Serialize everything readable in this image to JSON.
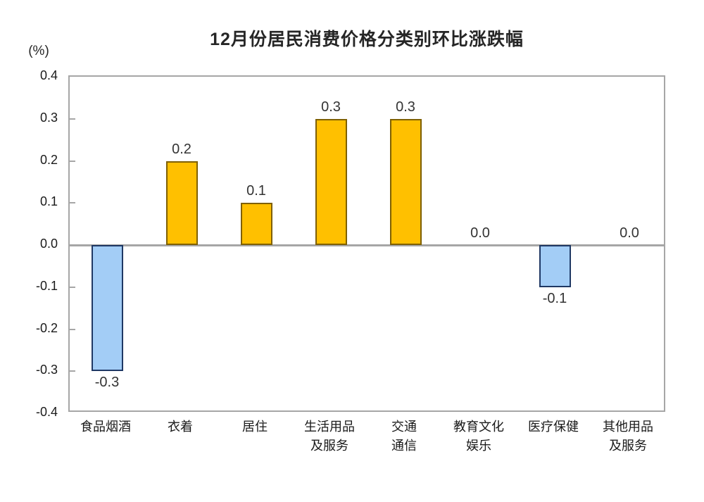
{
  "chart_data": {
    "type": "bar",
    "title": "12月份居民消费价格分类别环比涨跌幅",
    "unit_label": "(%)",
    "xlabel": "",
    "ylabel": "(%)",
    "ylim": [
      -0.4,
      0.4
    ],
    "ytick_step": 0.1,
    "yticks": [
      "0.4",
      "0.3",
      "0.2",
      "0.1",
      "0.0",
      "-0.1",
      "-0.2",
      "-0.3",
      "-0.4"
    ],
    "grid": false,
    "legend": null,
    "categories": [
      "食品烟酒",
      "衣着",
      "居住",
      "生活用品及服务",
      "交通通信",
      "教育文化娱乐",
      "医疗保健",
      "其他用品及服务"
    ],
    "category_label_lines": [
      [
        "食品烟酒"
      ],
      [
        "衣着"
      ],
      [
        "居住"
      ],
      [
        "生活用品",
        "及服务"
      ],
      [
        "交通",
        "通信"
      ],
      [
        "教育文化",
        "娱乐"
      ],
      [
        "医疗保健"
      ],
      [
        "其他用品",
        "及服务"
      ]
    ],
    "values": [
      -0.3,
      0.2,
      0.1,
      0.3,
      0.3,
      0.0,
      -0.1,
      0.0
    ],
    "value_labels": [
      "-0.3",
      "0.2",
      "0.1",
      "0.3",
      "0.3",
      "0.0",
      "-0.1",
      "0.0"
    ],
    "colors": {
      "positive_fill": "#ffc000",
      "positive_border": "#7f6000",
      "negative_fill": "#a3cdf6",
      "negative_border": "#1f3864",
      "axis": "#a6a6a6",
      "text": "#262626"
    }
  }
}
